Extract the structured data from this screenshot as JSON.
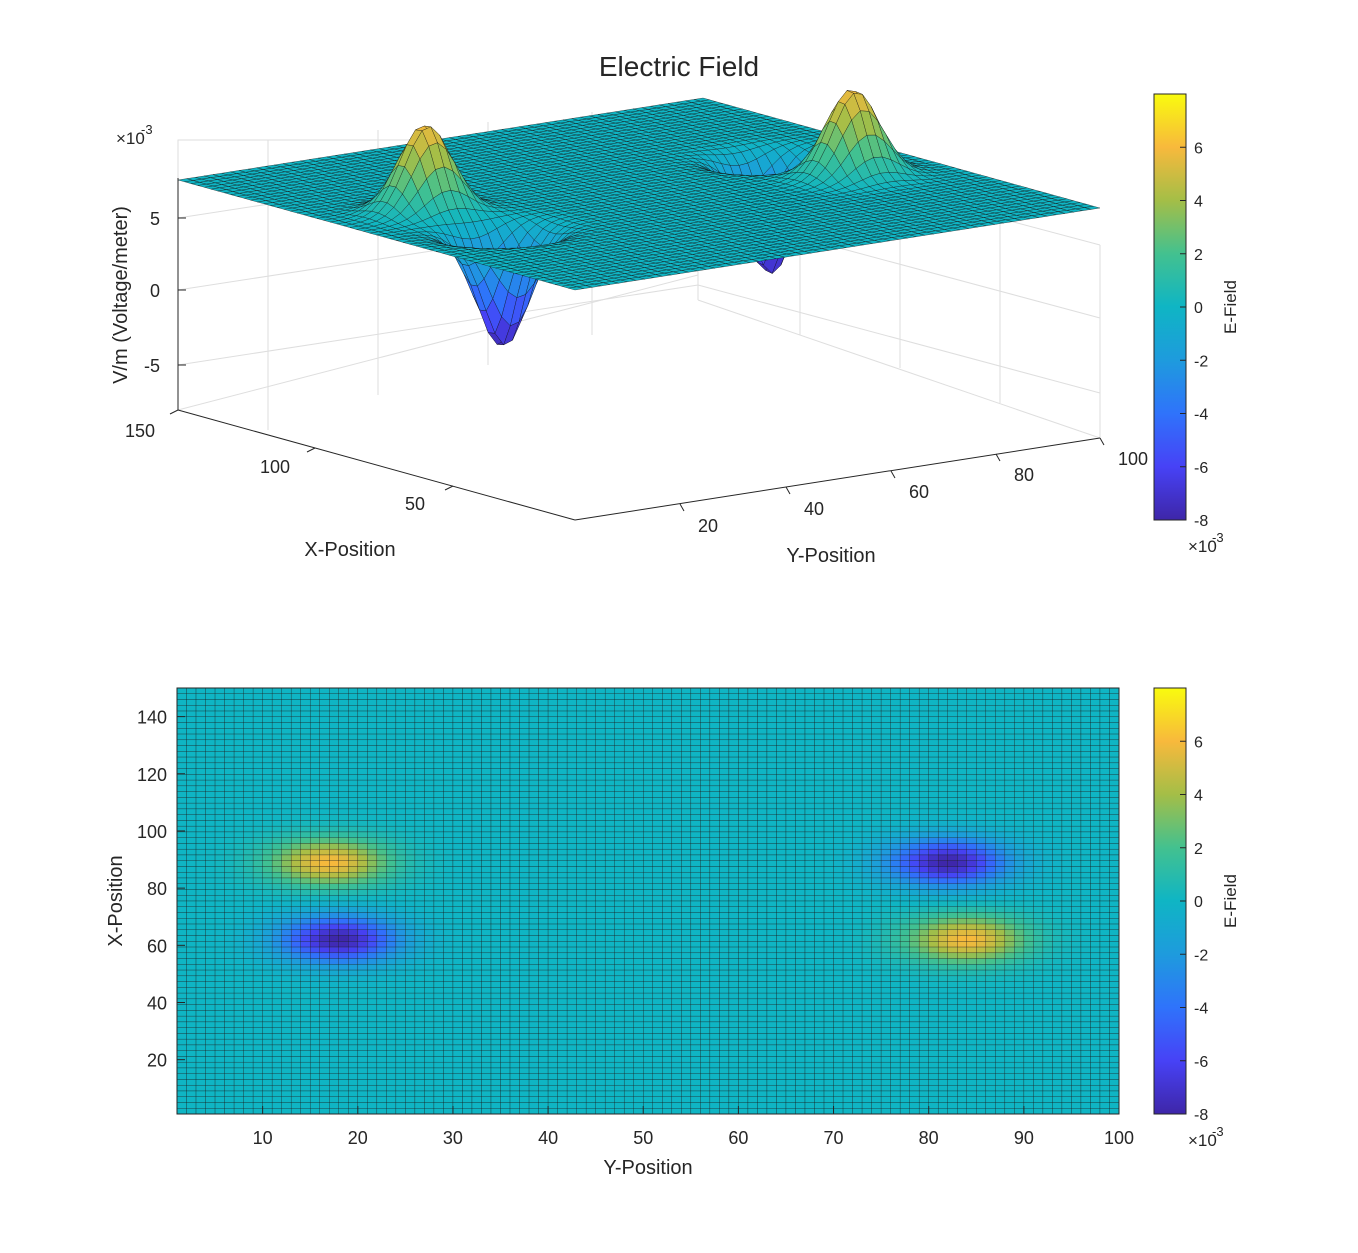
{
  "figure": {
    "title": "Electric Field"
  },
  "colorbar": {
    "label": "E-Field",
    "ticks": [
      "-8",
      "-6",
      "-4",
      "-2",
      "0",
      "2",
      "4",
      "6"
    ],
    "exponent_base": "×10",
    "exponent_power": "-3",
    "colormap": "parula",
    "range": [
      -0.008,
      0.008
    ]
  },
  "chart_data": [
    {
      "type": "surface",
      "title": "Electric Field",
      "xlabel": "Y-Position",
      "ylabel": "X-Position",
      "zlabel": "V/m (Voltage/meter)",
      "x_ticks": [
        "20",
        "40",
        "60",
        "80",
        "100"
      ],
      "y_ticks": [
        "50",
        "100",
        "150"
      ],
      "z_ticks": [
        "-5",
        "0",
        "5"
      ],
      "z_exponent_base": "×10",
      "z_exponent_power": "-3",
      "xlim": [
        1,
        100
      ],
      "ylim": [
        1,
        150
      ],
      "zlim": [
        -0.008,
        0.008
      ],
      "grid": true,
      "colorbar_label": "E-Field"
    },
    {
      "type": "heatmap",
      "xlabel": "Y-Position",
      "ylabel": "X-Position",
      "x_ticks": [
        "10",
        "20",
        "30",
        "40",
        "50",
        "60",
        "70",
        "80",
        "90",
        "100"
      ],
      "y_ticks": [
        "20",
        "40",
        "60",
        "80",
        "100",
        "120",
        "140"
      ],
      "xlim": [
        1,
        100
      ],
      "ylim": [
        1,
        150
      ],
      "colorbar_label": "E-Field",
      "features": [
        {
          "kind": "peak",
          "y_position": 17,
          "x_position": 89,
          "value": 0.006
        },
        {
          "kind": "trough",
          "y_position": 18,
          "x_position": 62,
          "value": -0.008
        },
        {
          "kind": "trough",
          "y_position": 82,
          "x_position": 89,
          "value": -0.008
        },
        {
          "kind": "peak",
          "y_position": 84,
          "x_position": 62,
          "value": 0.006
        }
      ]
    }
  ]
}
